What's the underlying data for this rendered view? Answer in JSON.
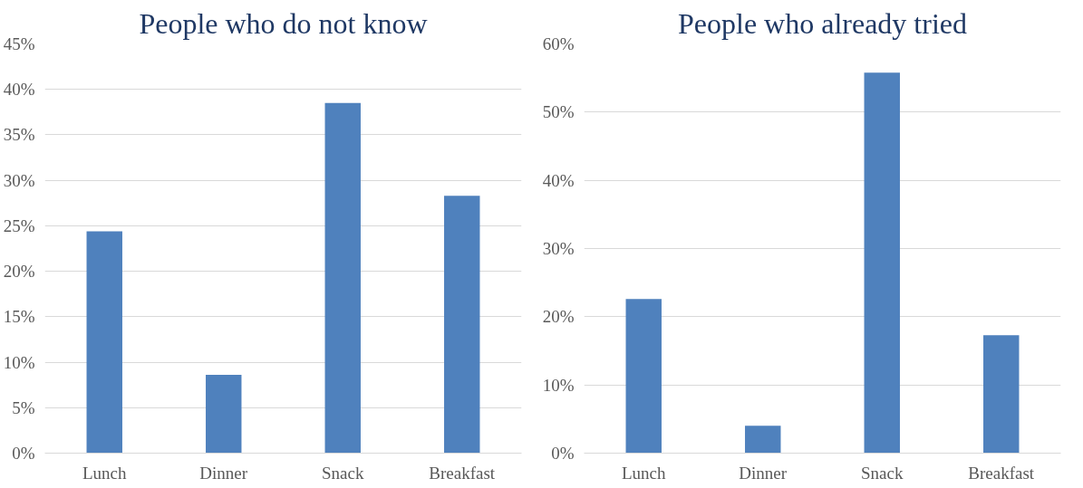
{
  "chart_data": [
    {
      "type": "bar",
      "title": "People who do not know",
      "categories": [
        "Lunch",
        "Dinner",
        "Snack",
        "Breakfast"
      ],
      "series": [
        {
          "color": "#4f81bd",
          "values": [
            24.4,
            8.6,
            38.5,
            28.3
          ]
        }
      ],
      "ylim": [
        0,
        45
      ],
      "yticks": [
        {
          "value": 0,
          "label": "0%"
        },
        {
          "value": 5,
          "label": "5%"
        },
        {
          "value": 10,
          "label": "10%"
        },
        {
          "value": 15,
          "label": "15%"
        },
        {
          "value": 20,
          "label": "20%"
        },
        {
          "value": 25,
          "label": "25%"
        },
        {
          "value": 30,
          "label": "30%"
        },
        {
          "value": 35,
          "label": "35%"
        },
        {
          "value": 40,
          "label": "40%"
        },
        {
          "value": 45,
          "label": "45%"
        }
      ],
      "grid": "y"
    },
    {
      "type": "bar",
      "title": "People who already tried",
      "categories": [
        "Lunch",
        "Dinner",
        "Snack",
        "Breakfast"
      ],
      "series": [
        {
          "color": "#4f81bd",
          "values": [
            22.6,
            4.0,
            55.8,
            17.3
          ]
        }
      ],
      "ylim": [
        0,
        60
      ],
      "yticks": [
        {
          "value": 0,
          "label": "0%"
        },
        {
          "value": 10,
          "label": "10%"
        },
        {
          "value": 20,
          "label": "20%"
        },
        {
          "value": 30,
          "label": "30%"
        },
        {
          "value": 40,
          "label": "40%"
        },
        {
          "value": 50,
          "label": "50%"
        },
        {
          "value": 60,
          "label": "60%"
        }
      ],
      "grid": "y"
    }
  ]
}
